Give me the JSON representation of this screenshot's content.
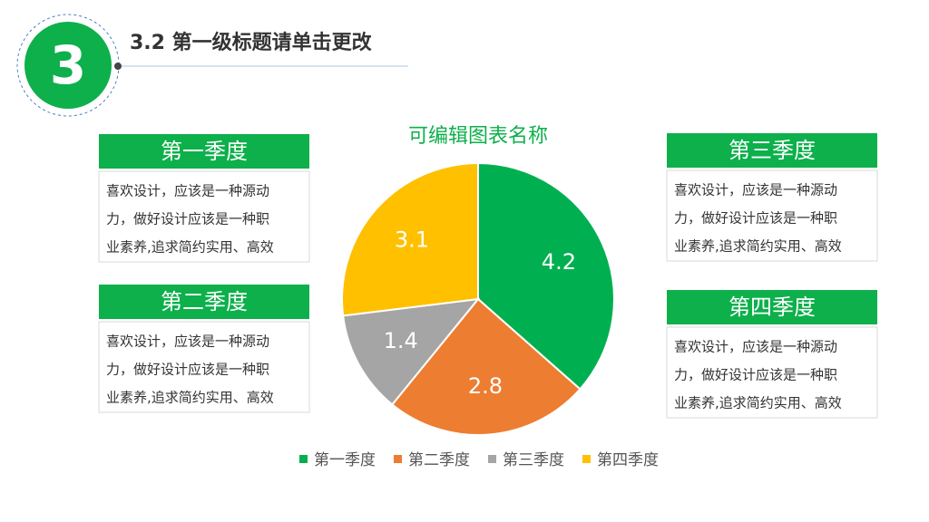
{
  "header": {
    "number": "3",
    "title": "3.2 第一级标题请单击更改"
  },
  "cards": [
    {
      "title": "第一季度",
      "lines": [
        "喜欢设计，应该是一种源动",
        "力，做好设计应该是一种职",
        "业素养,追求简约实用、高效"
      ]
    },
    {
      "title": "第二季度",
      "lines": [
        "喜欢设计，应该是一种源动",
        "力，做好设计应该是一种职",
        "业素养,追求简约实用、高效"
      ]
    },
    {
      "title": "第三季度",
      "lines": [
        "喜欢设计，应该是一种源动",
        "力，做好设计应该是一种职",
        "业素养,追求简约实用、高效"
      ]
    },
    {
      "title": "第四季度",
      "lines": [
        "喜欢设计，应该是一种源动",
        "力，做好设计应该是一种职",
        "业素养,追求简约实用、高效"
      ]
    }
  ],
  "chart_data": {
    "type": "pie",
    "title": "可编辑图表名称",
    "categories": [
      "第一季度",
      "第二季度",
      "第三季度",
      "第四季度"
    ],
    "values": [
      4.2,
      2.8,
      1.4,
      3.1
    ],
    "colors": [
      "#00b050",
      "#ed7d31",
      "#a5a5a5",
      "#ffc000"
    ],
    "legend": "bottom"
  }
}
